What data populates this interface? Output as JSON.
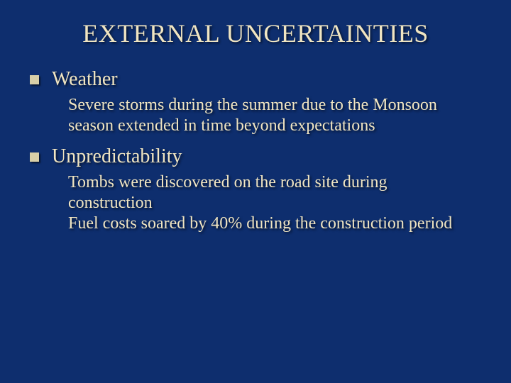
{
  "slide": {
    "background_color": "#0e2e6e",
    "text_color": "#f0e5c2",
    "bullet_color": "#d8cfa8",
    "font_family": "Times New Roman",
    "title": "EXTERNAL UNCERTAINTIES",
    "title_fontsize": 36,
    "heading_fontsize": 28,
    "body_fontsize": 24,
    "shadow_color": "#000000",
    "sections": [
      {
        "heading": "Weather",
        "body": "Severe storms during the summer due to the Monsoon season extended in time beyond expectations"
      },
      {
        "heading": "Unpredictability",
        "body": "Tombs were discovered on the road site during construction\nFuel costs soared by 40% during the construction period"
      }
    ]
  }
}
